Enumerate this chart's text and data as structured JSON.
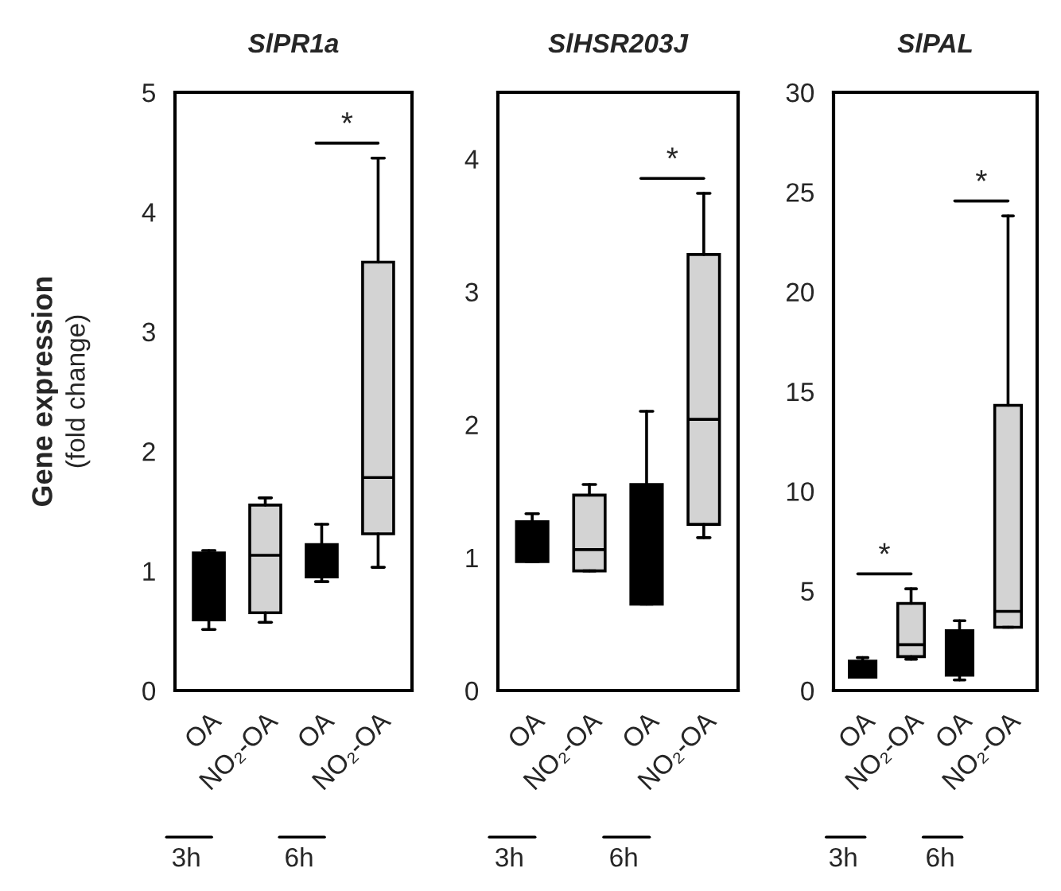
{
  "chart_data": [
    {
      "type": "box",
      "title": "SlPR1a",
      "ylabel": "Gene expression\n(fold change)",
      "categories": [
        "OA",
        "NO₂-OA",
        "OA",
        "NO₂-OA"
      ],
      "colors": [
        "#000000",
        "#d3d3d3",
        "#000000",
        "#d3d3d3"
      ],
      "ylim": [
        0,
        5
      ],
      "yticks": [
        0,
        1,
        2,
        3,
        4,
        5
      ],
      "grid": false,
      "boxes": [
        {
          "low": 0.51,
          "q1": 0.59,
          "median": 0.9,
          "q3": 1.15,
          "high": 1.17
        },
        {
          "low": 0.57,
          "q1": 0.65,
          "median": 1.13,
          "q3": 1.55,
          "high": 1.61
        },
        {
          "low": 0.91,
          "q1": 0.95,
          "median": 1.1,
          "q3": 1.22,
          "high": 1.39
        },
        {
          "low": 1.03,
          "q1": 1.31,
          "median": 1.78,
          "q3": 3.58,
          "high": 4.45
        }
      ],
      "annotations": [
        "*",
        "3h",
        "6h"
      ]
    },
    {
      "type": "box",
      "title": "SlHSR203J",
      "categories": [
        "OA",
        "NO₂-OA",
        "OA",
        "NO₂-OA"
      ],
      "colors": [
        "#000000",
        "#d3d3d3",
        "#000000",
        "#d3d3d3"
      ],
      "ylim": [
        0,
        4.5
      ],
      "yticks": [
        0,
        1,
        2,
        3,
        4
      ],
      "grid": false,
      "boxes": [
        {
          "low": 0.97,
          "q1": 0.97,
          "median": 1.1,
          "q3": 1.27,
          "high": 1.33
        },
        {
          "low": 0.9,
          "q1": 0.9,
          "median": 1.06,
          "q3": 1.47,
          "high": 1.55
        },
        {
          "low": 0.65,
          "q1": 0.65,
          "median": 1.0,
          "q3": 1.55,
          "high": 2.1
        },
        {
          "low": 1.15,
          "q1": 1.25,
          "median": 2.04,
          "q3": 3.28,
          "high": 3.74
        }
      ],
      "annotations": [
        "*",
        "3h",
        "6h"
      ]
    },
    {
      "type": "box",
      "title": "SlPAL",
      "categories": [
        "OA",
        "NO₂-OA",
        "OA",
        "NO₂-OA"
      ],
      "colors": [
        "#000000",
        "#d3d3d3",
        "#000000",
        "#d3d3d3"
      ],
      "ylim": [
        0,
        30
      ],
      "yticks": [
        0,
        5,
        10,
        15,
        20,
        25,
        30
      ],
      "grid": false,
      "boxes": [
        {
          "low": 0.67,
          "q1": 0.67,
          "median": 1.0,
          "q3": 1.47,
          "high": 1.65
        },
        {
          "low": 1.57,
          "q1": 1.7,
          "median": 2.3,
          "q3": 4.37,
          "high": 5.1
        },
        {
          "low": 0.53,
          "q1": 0.77,
          "median": 1.5,
          "q3": 3.0,
          "high": 3.5
        },
        {
          "low": 3.17,
          "q1": 3.17,
          "median": 3.97,
          "q3": 14.3,
          "high": 23.8
        }
      ],
      "annotations": [
        "*",
        "*",
        "3h",
        "6h"
      ]
    }
  ]
}
